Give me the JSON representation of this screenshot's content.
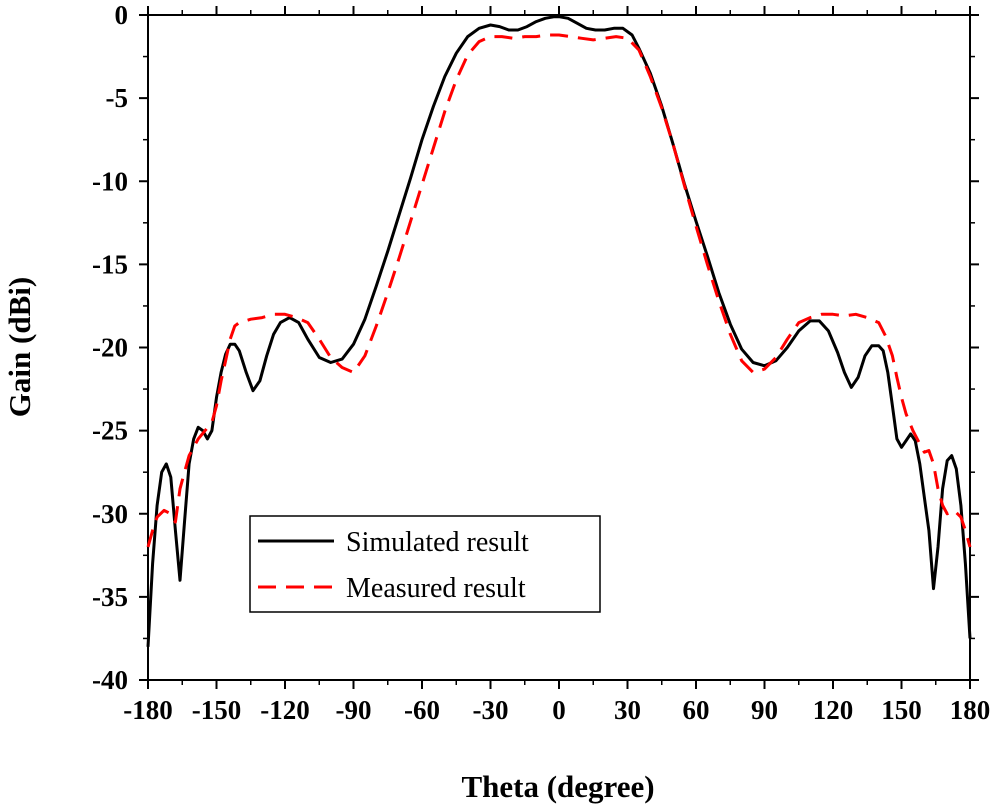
{
  "chart_data": {
    "type": "line",
    "title": "",
    "xlabel": "Theta (degree)",
    "ylabel": "Gain (dBi)",
    "xlim": [
      -180,
      180
    ],
    "ylim": [
      -40,
      0
    ],
    "xticks": [
      -180,
      -150,
      -120,
      -90,
      -60,
      -30,
      0,
      30,
      60,
      90,
      120,
      150,
      180
    ],
    "yticks": [
      0,
      -5,
      -10,
      -15,
      -20,
      -25,
      -30,
      -35,
      -40
    ],
    "xtick_labels": [
      "-180",
      "-150",
      "-120",
      "-90",
      "-60",
      "-30",
      "0",
      "30",
      "60",
      "90",
      "120",
      "150",
      "180"
    ],
    "ytick_labels": [
      "0",
      "-5",
      "-10",
      "-15",
      "-20",
      "-25",
      "-30",
      "-35",
      "-40"
    ],
    "grid": false,
    "legend_position": "lower-center",
    "series": [
      {
        "name": "Simulated result",
        "color": "#000000",
        "dash": "solid",
        "x": [
          -180,
          -178,
          -176,
          -174,
          -172,
          -170,
          -168,
          -166,
          -164,
          -162,
          -160,
          -158,
          -156,
          -154,
          -152,
          -150,
          -148,
          -146,
          -144,
          -142,
          -140,
          -137,
          -134,
          -131,
          -128,
          -125,
          -122,
          -118,
          -114,
          -110,
          -105,
          -100,
          -95,
          -90,
          -85,
          -80,
          -75,
          -70,
          -65,
          -60,
          -55,
          -50,
          -45,
          -40,
          -35,
          -30,
          -26,
          -22,
          -18,
          -14,
          -10,
          -6,
          -2,
          0,
          4,
          8,
          12,
          16,
          20,
          24,
          28,
          32,
          35,
          40,
          45,
          50,
          55,
          60,
          65,
          70,
          75,
          80,
          85,
          90,
          95,
          100,
          105,
          110,
          114,
          118,
          122,
          125,
          128,
          131,
          134,
          137,
          140,
          142,
          144,
          146,
          148,
          150,
          152,
          154,
          156,
          158,
          160,
          162,
          164,
          166,
          168,
          170,
          172,
          174,
          176,
          178,
          180
        ],
        "values": [
          -38,
          -33,
          -29.5,
          -27.5,
          -27,
          -27.8,
          -31,
          -34,
          -30.5,
          -27,
          -25.5,
          -24.8,
          -25,
          -25.5,
          -25,
          -23,
          -21.5,
          -20.4,
          -19.8,
          -19.8,
          -20.2,
          -21.5,
          -22.6,
          -22,
          -20.5,
          -19.2,
          -18.5,
          -18.2,
          -18.5,
          -19.5,
          -20.6,
          -20.9,
          -20.7,
          -19.8,
          -18.3,
          -16.3,
          -14.2,
          -12,
          -9.8,
          -7.5,
          -5.5,
          -3.7,
          -2.3,
          -1.3,
          -0.8,
          -0.6,
          -0.7,
          -0.9,
          -0.9,
          -0.7,
          -0.4,
          -0.2,
          -0.1,
          -0.1,
          -0.2,
          -0.5,
          -0.8,
          -0.9,
          -0.9,
          -0.8,
          -0.8,
          -1.2,
          -2,
          -3.5,
          -5.5,
          -7.8,
          -10.2,
          -12.4,
          -14.5,
          -16.7,
          -18.6,
          -20.1,
          -20.9,
          -21.1,
          -20.8,
          -20,
          -19,
          -18.4,
          -18.4,
          -19,
          -20.3,
          -21.5,
          -22.4,
          -21.8,
          -20.5,
          -19.9,
          -19.9,
          -20.2,
          -21.5,
          -23.5,
          -25.5,
          -26,
          -25.6,
          -25.2,
          -25.6,
          -27,
          -29,
          -31,
          -34.5,
          -32,
          -28.5,
          -26.8,
          -26.5,
          -27.3,
          -29.5,
          -33,
          -37.5
        ]
      },
      {
        "name": "Measured result",
        "color": "#ff0000",
        "dash": "dashed",
        "x": [
          -180,
          -178,
          -176,
          -173,
          -170,
          -168,
          -166,
          -164,
          -162,
          -160,
          -158,
          -155,
          -152,
          -150,
          -148,
          -146,
          -144,
          -142,
          -140,
          -135,
          -130,
          -125,
          -120,
          -115,
          -110,
          -105,
          -100,
          -95,
          -90,
          -85,
          -80,
          -75,
          -70,
          -65,
          -60,
          -55,
          -50,
          -45,
          -40,
          -35,
          -30,
          -25,
          -20,
          -15,
          -10,
          -5,
          0,
          5,
          10,
          15,
          20,
          25,
          30,
          35,
          40,
          45,
          50,
          55,
          60,
          65,
          70,
          75,
          80,
          85,
          90,
          95,
          100,
          105,
          110,
          115,
          120,
          125,
          130,
          135,
          140,
          143,
          146,
          148,
          150,
          152,
          155,
          158,
          160,
          162,
          164,
          166,
          168,
          170,
          173,
          176,
          178,
          180
        ],
        "values": [
          -32,
          -31,
          -30.2,
          -29.8,
          -30,
          -30.5,
          -28.5,
          -27.5,
          -26.5,
          -26,
          -25.5,
          -25,
          -24.5,
          -23.5,
          -22,
          -20.8,
          -19.5,
          -18.7,
          -18.5,
          -18.3,
          -18.2,
          -18,
          -18,
          -18.2,
          -18.5,
          -19.5,
          -20.6,
          -21.2,
          -21.5,
          -20.5,
          -18.7,
          -16.7,
          -14.6,
          -12.4,
          -10.2,
          -8,
          -5.8,
          -3.9,
          -2.4,
          -1.6,
          -1.3,
          -1.3,
          -1.4,
          -1.3,
          -1.3,
          -1.2,
          -1.2,
          -1.3,
          -1.4,
          -1.5,
          -1.4,
          -1.3,
          -1.4,
          -2.1,
          -3.7,
          -5.6,
          -7.8,
          -10.3,
          -12.7,
          -15,
          -17.2,
          -19.2,
          -20.8,
          -21.5,
          -21.3,
          -20.6,
          -19.5,
          -18.5,
          -18.2,
          -18,
          -18,
          -18.1,
          -18,
          -18.2,
          -18.5,
          -19.3,
          -20.5,
          -21.8,
          -23,
          -24,
          -25,
          -25.8,
          -26.3,
          -26.2,
          -27,
          -28.5,
          -29.5,
          -30,
          -29.8,
          -30.2,
          -31,
          -32
        ]
      }
    ]
  }
}
